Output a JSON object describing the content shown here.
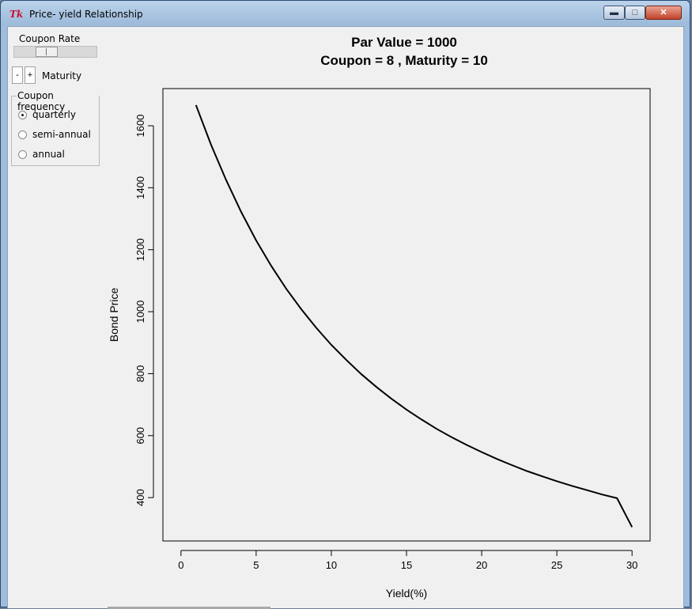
{
  "window": {
    "title": "Price- yield Relationship",
    "app_icon": "tk-feather-icon",
    "buttons": {
      "minimize": "minimize-icon",
      "maximize": "maximize-icon",
      "close": "close-icon"
    }
  },
  "controls": {
    "coupon_rate": {
      "label": "Coupon Rate",
      "slider_position": 0.35
    },
    "maturity": {
      "decrement_label": "-",
      "increment_label": "+",
      "label": "Maturity"
    },
    "coupon_frequency": {
      "legend": "Coupon frequency",
      "options": [
        {
          "label": "quarterly",
          "selected": true
        },
        {
          "label": "semi-annual",
          "selected": false
        },
        {
          "label": "annual",
          "selected": false
        }
      ]
    }
  },
  "chart_data": {
    "type": "line",
    "title": "Par Value =  1000",
    "subtitle": "Coupon =  8 , Maturity =  10",
    "xlabel": "Yield(%)",
    "ylabel": "Bond Price",
    "xlim": [
      -1.2,
      31.2
    ],
    "ylim": [
      260,
      1720
    ],
    "x_ticks": [
      0,
      5,
      10,
      15,
      20,
      25,
      30
    ],
    "y_ticks": [
      400,
      600,
      800,
      1000,
      1200,
      1400,
      1600
    ],
    "grid": false,
    "legend": "none",
    "line_color": "#000000",
    "series": [
      {
        "x": [
          1,
          2,
          3,
          4,
          5,
          6,
          7,
          8,
          9,
          10,
          11,
          12,
          13,
          14,
          15,
          16,
          17,
          18,
          19,
          20,
          21,
          22,
          23,
          24,
          25,
          26,
          27,
          28,
          29,
          30
        ],
        "values": [
          1667,
          1539,
          1425,
          1322,
          1230,
          1148,
          1074,
          1008,
          948,
          893,
          844,
          798,
          757,
          719,
          684,
          652,
          622,
          595,
          570,
          547,
          525,
          505,
          486,
          469,
          453,
          438,
          424,
          410,
          398,
          305
        ]
      }
    ]
  }
}
